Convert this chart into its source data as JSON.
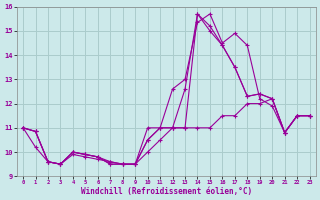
{
  "xlabel": "Windchill (Refroidissement éolien,°C)",
  "xlim": [
    -0.5,
    23.5
  ],
  "ylim": [
    9,
    16
  ],
  "yticks": [
    9,
    10,
    11,
    12,
    13,
    14,
    15,
    16
  ],
  "xticks": [
    0,
    1,
    2,
    3,
    4,
    5,
    6,
    7,
    8,
    9,
    10,
    11,
    12,
    13,
    14,
    15,
    16,
    17,
    18,
    19,
    20,
    21,
    22,
    23
  ],
  "bg_color": "#cce9ea",
  "grid_color": "#aacccc",
  "line_color": "#990099",
  "series": [
    {
      "x": [
        0,
        1,
        2,
        3,
        4,
        5,
        6,
        7,
        8,
        9,
        10,
        11,
        12,
        13,
        14,
        15,
        16,
        17,
        18,
        19,
        20,
        21,
        22,
        23
      ],
      "y": [
        11.0,
        10.85,
        9.6,
        9.5,
        10.0,
        9.9,
        9.8,
        9.6,
        9.5,
        9.5,
        11.0,
        11.0,
        12.6,
        13.0,
        15.35,
        15.7,
        14.5,
        14.9,
        14.4,
        12.2,
        11.9,
        10.8,
        11.5,
        11.5
      ]
    },
    {
      "x": [
        0,
        1,
        2,
        3,
        4,
        5,
        6,
        7,
        8,
        9,
        10,
        11,
        12,
        13,
        14,
        15,
        16,
        17,
        18,
        19,
        20,
        21,
        22,
        23
      ],
      "y": [
        11.0,
        10.85,
        9.6,
        9.5,
        10.0,
        9.9,
        9.8,
        9.5,
        9.5,
        9.5,
        10.5,
        11.0,
        11.0,
        12.6,
        15.7,
        15.0,
        14.4,
        13.5,
        12.3,
        12.4,
        12.2,
        10.8,
        11.5,
        11.5
      ]
    },
    {
      "x": [
        0,
        1,
        2,
        3,
        4,
        5,
        6,
        7,
        8,
        9,
        10,
        11,
        12,
        13,
        14,
        15,
        16,
        17,
        18,
        19,
        20,
        21,
        22,
        23
      ],
      "y": [
        11.0,
        10.85,
        9.6,
        9.5,
        10.0,
        9.9,
        9.8,
        9.5,
        9.5,
        9.5,
        10.5,
        11.0,
        11.0,
        11.0,
        15.7,
        15.2,
        14.4,
        13.5,
        12.3,
        12.4,
        12.2,
        10.8,
        11.5,
        11.5
      ]
    },
    {
      "x": [
        0,
        1,
        2,
        3,
        4,
        5,
        6,
        7,
        8,
        9,
        10,
        11,
        12,
        13,
        14,
        15,
        16,
        17,
        18,
        19,
        20,
        21,
        22,
        23
      ],
      "y": [
        11.0,
        10.2,
        9.6,
        9.5,
        9.9,
        9.8,
        9.7,
        9.6,
        9.5,
        9.5,
        10.0,
        10.5,
        11.0,
        11.0,
        11.0,
        11.0,
        11.5,
        11.5,
        12.0,
        12.0,
        12.2,
        10.8,
        11.5,
        11.5
      ]
    }
  ]
}
